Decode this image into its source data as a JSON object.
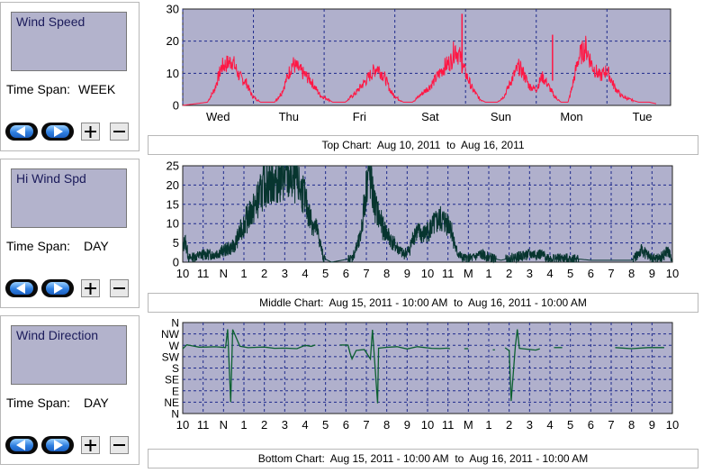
{
  "panels": [
    {
      "title": "Wind Speed",
      "timespan_label": "Time Span:",
      "timespan_value": "WEEK"
    },
    {
      "title": "Hi Wind Spd",
      "timespan_label": "Time Span:",
      "timespan_value": "DAY"
    },
    {
      "title": "Wind Direction",
      "timespan_label": "Time Span:",
      "timespan_value": "DAY"
    }
  ],
  "captions": {
    "top": "Top Chart:  Aug 10, 2011  to  Aug 16, 2011",
    "middle": "Middle Chart:  Aug 15, 2011 - 10:00 AM  to  Aug 16, 2011 - 10:00 AM",
    "bottom": "Bottom Chart:  Aug 15, 2011 - 10:00 AM  to  Aug 16, 2011 - 10:00 AM"
  },
  "colors": {
    "plot_bg": "#b0b0cc",
    "grid": "#1e2a8c",
    "top_line": "#ff1744",
    "mid_line": "#07352f",
    "bot_line": "#0c6030",
    "axis_text": "#000000"
  },
  "chart_data": [
    {
      "type": "line",
      "name": "top",
      "x_ticks": [
        "Wed",
        "Thu",
        "Fri",
        "Sat",
        "Sun",
        "Mon",
        "Tue"
      ],
      "y_ticks": [
        "0",
        "10",
        "20",
        "30"
      ],
      "ylim": [
        0,
        30
      ],
      "x_range": [
        -0.5,
        6.4
      ],
      "grid": true,
      "anchors": [
        [
          -0.5,
          0
        ],
        [
          -0.15,
          1
        ],
        [
          -0.05,
          5
        ],
        [
          0.05,
          12
        ],
        [
          0.2,
          14
        ],
        [
          0.3,
          9
        ],
        [
          0.4,
          7
        ],
        [
          0.48,
          3
        ],
        [
          0.6,
          1
        ],
        [
          0.8,
          1
        ],
        [
          0.9,
          4
        ],
        [
          1.05,
          13
        ],
        [
          1.15,
          11
        ],
        [
          1.3,
          8
        ],
        [
          1.45,
          3
        ],
        [
          1.55,
          2
        ],
        [
          1.62,
          1
        ],
        [
          1.8,
          1
        ],
        [
          1.95,
          4
        ],
        [
          2.1,
          8
        ],
        [
          2.25,
          12
        ],
        [
          2.35,
          9
        ],
        [
          2.45,
          4
        ],
        [
          2.55,
          2
        ],
        [
          2.62,
          1
        ],
        [
          2.75,
          1
        ],
        [
          2.85,
          3
        ],
        [
          3.0,
          6
        ],
        [
          3.1,
          9
        ],
        [
          3.2,
          12
        ],
        [
          3.3,
          14
        ],
        [
          3.35,
          18
        ],
        [
          3.42,
          15
        ],
        [
          3.5,
          10
        ],
        [
          3.6,
          5
        ],
        [
          3.7,
          2
        ],
        [
          3.78,
          1
        ],
        [
          3.95,
          1
        ],
        [
          4.05,
          3
        ],
        [
          4.15,
          8
        ],
        [
          4.25,
          12
        ],
        [
          4.32,
          10
        ],
        [
          4.4,
          6
        ],
        [
          4.5,
          5
        ],
        [
          4.58,
          9
        ],
        [
          4.65,
          7
        ],
        [
          4.75,
          3
        ],
        [
          4.85,
          1
        ],
        [
          4.95,
          1
        ],
        [
          5.0,
          5
        ],
        [
          5.1,
          15
        ],
        [
          5.2,
          18
        ],
        [
          5.3,
          12
        ],
        [
          5.4,
          9
        ],
        [
          5.5,
          11
        ],
        [
          5.6,
          6
        ],
        [
          5.7,
          3
        ],
        [
          5.8,
          2
        ],
        [
          5.95,
          1
        ],
        [
          6.1,
          1
        ],
        [
          6.2,
          0.5
        ]
      ],
      "spikes": [
        [
          3.45,
          28.5
        ],
        [
          4.73,
          22
        ]
      ]
    },
    {
      "type": "line",
      "name": "middle",
      "x_ticks": [
        "10",
        "11",
        "N",
        "1",
        "2",
        "3",
        "4",
        "5",
        "6",
        "7",
        "8",
        "9",
        "10",
        "11",
        "M",
        "1",
        "2",
        "3",
        "4",
        "5",
        "6",
        "7",
        "8",
        "9",
        "10"
      ],
      "y_ticks": [
        "0",
        "5",
        "10",
        "15",
        "20",
        "25"
      ],
      "ylim": [
        0,
        25
      ],
      "x_range": [
        0,
        24
      ],
      "grid": true,
      "anchors": [
        [
          0,
          3
        ],
        [
          0.1,
          6
        ],
        [
          0.3,
          1
        ],
        [
          1,
          2
        ],
        [
          1.5,
          2
        ],
        [
          2,
          3
        ],
        [
          2.5,
          4
        ],
        [
          3,
          10
        ],
        [
          3.5,
          14
        ],
        [
          4,
          20
        ],
        [
          4.5,
          21
        ],
        [
          5,
          22
        ],
        [
          5.5,
          21
        ],
        [
          5.9,
          18
        ],
        [
          6.2,
          12
        ],
        [
          6.6,
          8
        ],
        [
          6.9,
          1
        ],
        [
          7.3,
          0
        ],
        [
          8.3,
          1
        ],
        [
          8.7,
          6
        ],
        [
          9.1,
          24
        ],
        [
          9.4,
          15
        ],
        [
          9.8,
          9
        ],
        [
          10.3,
          5
        ],
        [
          10.8,
          2
        ],
        [
          11.1,
          3
        ],
        [
          11.4,
          8
        ],
        [
          11.8,
          7
        ],
        [
          12.2,
          9
        ],
        [
          12.6,
          11
        ],
        [
          13.1,
          10
        ],
        [
          13.4,
          3
        ],
        [
          13.7,
          1
        ],
        [
          14.2,
          1
        ],
        [
          14.6,
          2
        ],
        [
          15.2,
          1
        ],
        [
          15.6,
          0.5
        ],
        [
          16.0,
          1
        ],
        [
          17.0,
          2
        ],
        [
          17.5,
          2
        ],
        [
          18,
          1
        ],
        [
          19,
          1
        ],
        [
          20,
          0.5
        ],
        [
          21,
          0.5
        ],
        [
          22,
          0.5
        ],
        [
          22.5,
          3
        ],
        [
          23,
          1
        ],
        [
          23.4,
          1
        ],
        [
          23.8,
          3
        ],
        [
          24,
          0
        ]
      ]
    },
    {
      "type": "line",
      "name": "bottom",
      "x_ticks": [
        "10",
        "11",
        "N",
        "1",
        "2",
        "3",
        "4",
        "5",
        "6",
        "7",
        "8",
        "9",
        "10",
        "11",
        "M",
        "1",
        "2",
        "3",
        "4",
        "5",
        "6",
        "7",
        "8",
        "9",
        "10"
      ],
      "y_ticks": [
        "N",
        "NW",
        "W",
        "SW",
        "S",
        "SE",
        "E",
        "NE",
        "N"
      ],
      "ylim": [
        0,
        8
      ],
      "x_range": [
        0,
        24
      ],
      "grid": true,
      "segments": [
        [
          [
            0,
            5.8
          ],
          [
            0.2,
            6.1
          ],
          [
            0.5,
            6.0
          ],
          [
            0.8,
            5.9
          ],
          [
            1.2,
            5.8
          ],
          [
            1.6,
            5.9
          ],
          [
            2.1,
            5.8
          ],
          [
            2.2,
            7.3
          ],
          [
            2.35,
            1.0
          ],
          [
            2.45,
            7.3
          ],
          [
            2.8,
            6.0
          ],
          [
            3.2,
            5.8
          ],
          [
            3.6,
            5.7
          ],
          [
            4.0,
            5.8
          ],
          [
            4.5,
            5.7
          ],
          [
            5.0,
            5.8
          ],
          [
            5.6,
            5.7
          ],
          [
            6.0,
            5.9
          ],
          [
            6.3,
            6.0
          ],
          [
            6.5,
            5.9
          ]
        ],
        [
          [
            7.7,
            6.0
          ],
          [
            8.1,
            5.9
          ],
          [
            8.2,
            5.3
          ],
          [
            8.3,
            4.8
          ],
          [
            8.5,
            5.6
          ],
          [
            8.9,
            5.7
          ],
          [
            9.2,
            4.8
          ],
          [
            9.3,
            7.3
          ],
          [
            9.55,
            0.9
          ],
          [
            9.6,
            5.8
          ],
          [
            10.0,
            5.9
          ],
          [
            10.5,
            5.8
          ],
          [
            11.0,
            5.8
          ],
          [
            11.5,
            5.9
          ],
          [
            12.2,
            5.8
          ],
          [
            12.6,
            5.6
          ],
          [
            13.0,
            5.8
          ],
          [
            13.1,
            5.7
          ]
        ],
        [
          [
            13.8,
            5.7
          ],
          [
            14.0,
            5.7
          ]
        ],
        [
          [
            15.2,
            5.6
          ],
          [
            15.3,
            5.6
          ]
        ],
        [
          [
            15.8,
            5.8
          ],
          [
            16.0,
            5.6
          ],
          [
            16.1,
            1.1
          ],
          [
            16.3,
            5.8
          ],
          [
            16.4,
            7.3
          ],
          [
            16.5,
            5.7
          ],
          [
            16.7,
            5.6
          ],
          [
            17.3,
            5.5
          ],
          [
            17.5,
            5.6
          ]
        ],
        [
          [
            18.2,
            5.8
          ],
          [
            18.6,
            5.8
          ]
        ],
        [
          [
            21.2,
            5.8
          ],
          [
            22.0,
            5.7
          ],
          [
            22.8,
            5.8
          ],
          [
            23.6,
            5.8
          ]
        ]
      ]
    }
  ]
}
